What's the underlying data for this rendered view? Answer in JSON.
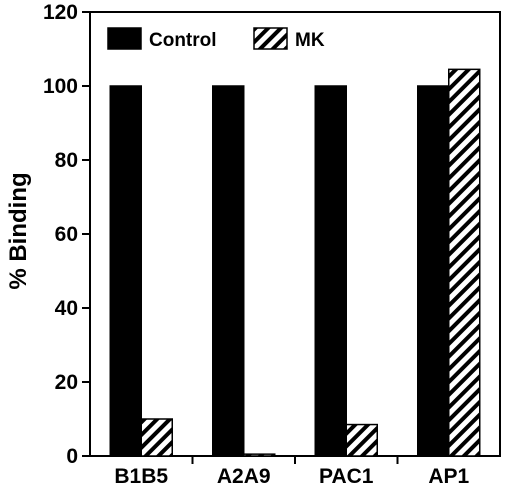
{
  "chart_data": {
    "type": "bar",
    "title": "",
    "xlabel": "",
    "ylabel": "% Binding",
    "ylim": [
      0,
      120
    ],
    "yticks": [
      0,
      20,
      40,
      60,
      80,
      100,
      120
    ],
    "categories": [
      "B1B5",
      "A2A9",
      "PAC1",
      "AP1"
    ],
    "series": [
      {
        "name": "Control",
        "values": [
          100,
          100,
          100,
          100
        ],
        "fill": "solid",
        "color": "#000000"
      },
      {
        "name": "MK",
        "values": [
          10,
          0.5,
          8.5,
          104.5
        ],
        "fill": "diagonal-hatch",
        "color": "#000000"
      }
    ],
    "grid": false,
    "legend": {
      "placement": "top-left",
      "entries": [
        "Control",
        "MK"
      ]
    }
  }
}
